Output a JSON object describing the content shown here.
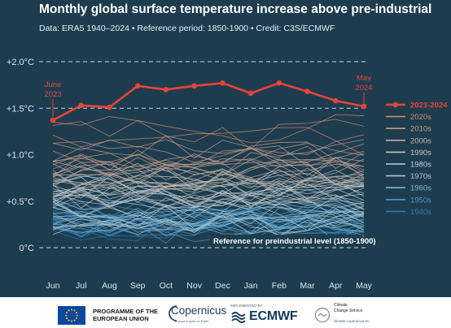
{
  "header": {
    "title": "Monthly global surface temperature increase above pre-industrial",
    "subtitle": "Data: ERA5 1940–2024 • Reference period: 1850-1900 • Credit: C3S/ECMWF"
  },
  "colors": {
    "background": "#1d3d4f",
    "highlight": "#e8433b",
    "decade_2020s": "#d4836d",
    "decade_2010s": "#c89a84",
    "decade_2000s": "#c3aea2",
    "decade_1990s": "#c4c4c4",
    "decade_1980s": "#c0cdd3",
    "decade_1970s": "#a9c8d6",
    "decade_1960s": "#7fb6d3",
    "decade_1950s": "#4a97c6",
    "decade_1940s": "#2c79b0"
  },
  "chart_data": {
    "type": "line",
    "x": [
      "Jun",
      "Jul",
      "Aug",
      "Sep",
      "Oct",
      "Nov",
      "Dec",
      "Jan",
      "Feb",
      "Mar",
      "Apr",
      "May"
    ],
    "ylim": [
      -0.2,
      2.0
    ],
    "yticks": [
      0,
      0.5,
      1.0,
      1.5,
      2.0
    ],
    "ytick_labels": [
      "0°C",
      "+0.5°C",
      "+1.0°C",
      "+1.5°C",
      "+2.0°C"
    ],
    "grid": false,
    "reference_lines": [
      {
        "value": 2.0,
        "style": "dashed"
      },
      {
        "value": 1.5,
        "style": "dashed"
      },
      {
        "value": 0,
        "style": "dashed",
        "label": "Reference for preindustrial level (1850-1900)"
      }
    ],
    "highlight_series": {
      "name": "2023-2024",
      "values": [
        1.37,
        1.53,
        1.51,
        1.74,
        1.7,
        1.74,
        1.77,
        1.66,
        1.77,
        1.68,
        1.58,
        1.52
      ]
    },
    "annotations": [
      {
        "text": "June",
        "text2": "2023",
        "point": "Jun"
      },
      {
        "text": "May",
        "text2": "2024",
        "point": "May"
      }
    ],
    "legend": {
      "placement": "right",
      "entries": [
        "2023-2024",
        "2020s",
        "2010s",
        "2000s",
        "1990s",
        "1980s",
        "1970s",
        "1960s",
        "1950s",
        "1940s"
      ]
    },
    "background_series_groups": [
      {
        "name": "2020s",
        "center": 1.2,
        "spread": 0.08,
        "count": 3,
        "color": "#d4836d"
      },
      {
        "name": "2010s",
        "center": 0.98,
        "spread": 0.11,
        "count": 10,
        "color": "#c89a84"
      },
      {
        "name": "2000s",
        "center": 0.8,
        "spread": 0.1,
        "count": 10,
        "color": "#c3aea2"
      },
      {
        "name": "1990s",
        "center": 0.64,
        "spread": 0.1,
        "count": 10,
        "color": "#c4c4c4"
      },
      {
        "name": "1980s",
        "center": 0.52,
        "spread": 0.1,
        "count": 10,
        "color": "#c0cdd3"
      },
      {
        "name": "1970s",
        "center": 0.36,
        "spread": 0.1,
        "count": 10,
        "color": "#a9c8d6"
      },
      {
        "name": "1960s",
        "center": 0.32,
        "spread": 0.1,
        "count": 10,
        "color": "#7fb6d3"
      },
      {
        "name": "1950s",
        "center": 0.26,
        "spread": 0.11,
        "count": 10,
        "color": "#4a97c6"
      },
      {
        "name": "1940s",
        "center": 0.3,
        "spread": 0.12,
        "count": 10,
        "color": "#2c79b0"
      }
    ]
  },
  "footer": {
    "eu_line1": "PROGRAMME OF THE",
    "eu_line2": "EUROPEAN UNION",
    "copernicus": "Copernicus",
    "copernicus_tagline": "Europe's eyes on Earth",
    "implemented_by": "IMPLEMENTED BY",
    "ecmwf": "ECMWF",
    "c3s_line1": "Climate",
    "c3s_line2": "Change Service",
    "c3s_url": "climate.copernicus.eu"
  }
}
